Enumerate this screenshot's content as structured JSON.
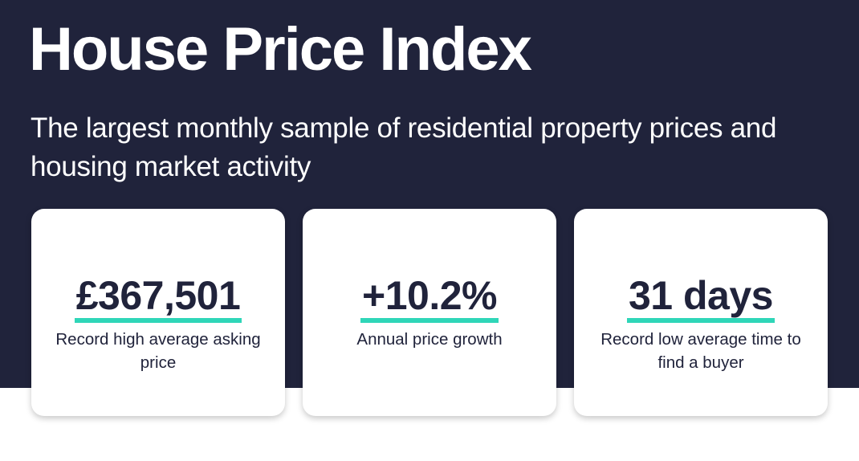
{
  "header": {
    "title": "House Price Index",
    "subtitle": "The largest monthly sample of residential property prices and housing market activity"
  },
  "stats": [
    {
      "value": "£367,501",
      "label": "Record high average asking price"
    },
    {
      "value": "+10.2%",
      "label": "Annual price growth"
    },
    {
      "value": "31 days",
      "label": "Record low average time to find a buyer"
    }
  ],
  "colors": {
    "background_dark": "#20233b",
    "accent_underline": "#2fd6b8",
    "card_background": "#ffffff",
    "text_dark": "#20233b"
  }
}
